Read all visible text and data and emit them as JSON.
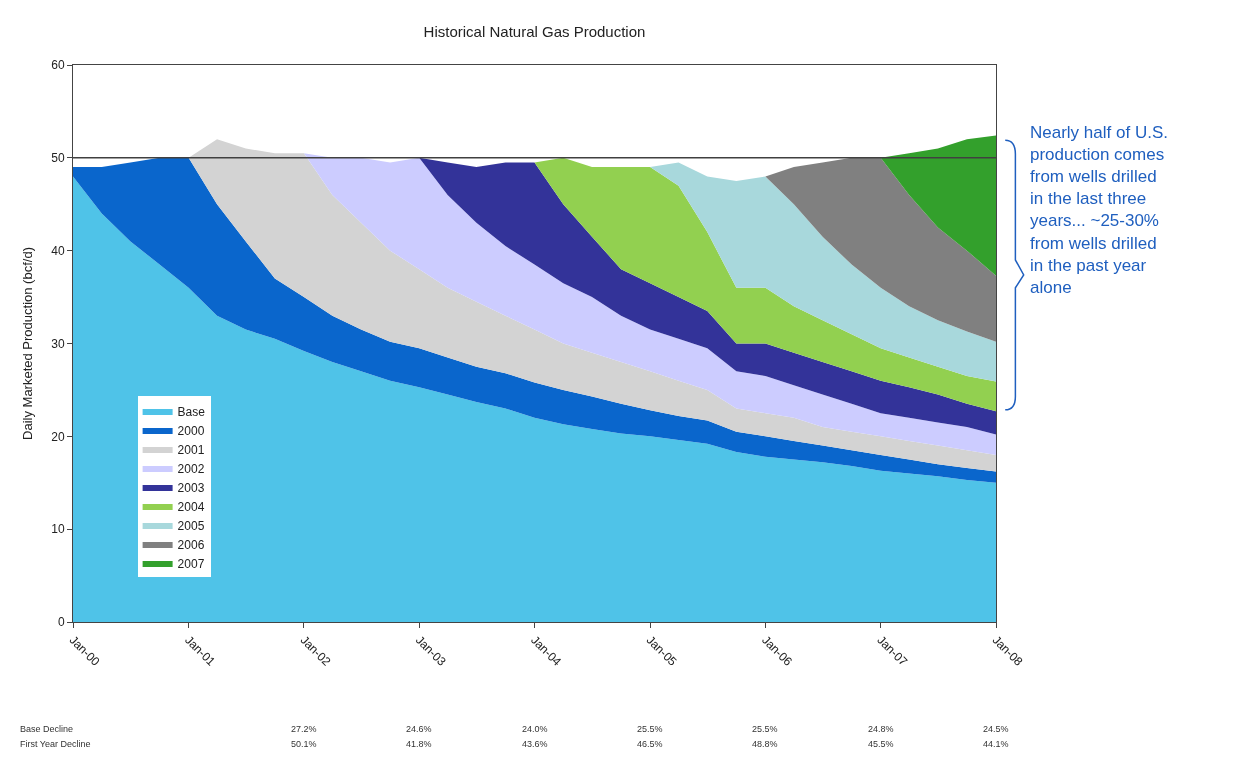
{
  "chart_data": {
    "type": "area",
    "stacked": true,
    "title": "Historical Natural Gas Production",
    "ylabel": "Daily Marketed Production (bcf/d)",
    "x": [
      "2000-01",
      "2000-04",
      "2000-07",
      "2000-10",
      "2001-01",
      "2001-04",
      "2001-07",
      "2001-10",
      "2002-01",
      "2002-04",
      "2002-07",
      "2002-10",
      "2003-01",
      "2003-04",
      "2003-07",
      "2003-10",
      "2004-01",
      "2004-04",
      "2004-07",
      "2004-10",
      "2005-01",
      "2005-04",
      "2005-07",
      "2005-10",
      "2006-01",
      "2006-04",
      "2006-07",
      "2006-10",
      "2007-01",
      "2007-04",
      "2007-07",
      "2007-10",
      "2008-01"
    ],
    "xlim": [
      "2000-01",
      "2008-01"
    ],
    "xticks": [
      {
        "value": "2000-01",
        "label": "Jan-00"
      },
      {
        "value": "2001-01",
        "label": "Jan-01"
      },
      {
        "value": "2002-01",
        "label": "Jan-02"
      },
      {
        "value": "2003-01",
        "label": "Jan-03"
      },
      {
        "value": "2004-01",
        "label": "Jan-04"
      },
      {
        "value": "2005-01",
        "label": "Jan-05"
      },
      {
        "value": "2006-01",
        "label": "Jan-06"
      },
      {
        "value": "2007-01",
        "label": "Jan-07"
      },
      {
        "value": "2008-01",
        "label": "Jan-08"
      }
    ],
    "ylim": [
      0,
      60
    ],
    "yticks": [
      0,
      10,
      20,
      30,
      40,
      50,
      60
    ],
    "legend": "left",
    "ref_lines": [
      {
        "axis": "y",
        "value": 50,
        "color": "#404040"
      }
    ],
    "series": [
      {
        "name": "Base",
        "color": "#4fc3e8",
        "values": [
          48,
          44,
          41,
          38.5,
          36,
          33,
          31.5,
          30.5,
          29.2,
          28,
          27,
          26,
          25.3,
          24.5,
          23.7,
          23,
          22,
          21.3,
          20.8,
          20.3,
          20,
          19.6,
          19.2,
          18.3,
          17.8,
          17.5,
          17.2,
          16.8,
          16.3,
          16,
          15.7,
          15.3,
          15
        ]
      },
      {
        "name": "2000",
        "color": "#0a66cc",
        "values": [
          1.0,
          5.0,
          8.5,
          11.5,
          14.0,
          12.0,
          9.5,
          6.5,
          5.8,
          5.0,
          4.5,
          4.2,
          4.2,
          4.0,
          3.8,
          3.8,
          3.8,
          3.7,
          3.5,
          3.2,
          2.8,
          2.6,
          2.5,
          2.2,
          2.2,
          2.0,
          1.8,
          1.7,
          1.7,
          1.5,
          1.3,
          1.3,
          1.2
        ]
      },
      {
        "name": "2001",
        "color": "#d3d3d3",
        "values": [
          0,
          0,
          0,
          0,
          0,
          7,
          10,
          13.5,
          15.5,
          13,
          11.5,
          9.8,
          8.5,
          7.5,
          7,
          6.2,
          5.7,
          5,
          4.7,
          4.5,
          4.2,
          3.8,
          3.3,
          2.5,
          2.5,
          2.5,
          2,
          2,
          2,
          2,
          2,
          1.9,
          1.8
        ]
      },
      {
        "name": "2002",
        "color": "#ccccff",
        "values": [
          0,
          0,
          0,
          0,
          0,
          0,
          0,
          0,
          0,
          4,
          7,
          9.5,
          12,
          10,
          8.5,
          7.5,
          7,
          6.5,
          6,
          5,
          4.5,
          4.5,
          4.5,
          4,
          4,
          3.5,
          3.5,
          3,
          2.5,
          2.5,
          2.5,
          2.5,
          2.2
        ]
      },
      {
        "name": "2003",
        "color": "#333399",
        "values": [
          0,
          0,
          0,
          0,
          0,
          0,
          0,
          0,
          0,
          0,
          0,
          0,
          0,
          3.5,
          6,
          9,
          11,
          8.5,
          6.5,
          5,
          5,
          4.5,
          4,
          3,
          3.5,
          3.5,
          3.5,
          3.5,
          3.5,
          3.3,
          3,
          2.5,
          2.5
        ]
      },
      {
        "name": "2004",
        "color": "#92d050",
        "values": [
          0,
          0,
          0,
          0,
          0,
          0,
          0,
          0,
          0,
          0,
          0,
          0,
          0,
          0,
          0,
          0,
          0,
          5,
          7.5,
          11,
          12.5,
          12,
          8.5,
          6,
          6,
          5,
          4.5,
          4,
          3.5,
          3.2,
          3,
          3,
          3.2
        ]
      },
      {
        "name": "2005",
        "color": "#a8d8dc",
        "values": [
          0,
          0,
          0,
          0,
          0,
          0,
          0,
          0,
          0,
          0,
          0,
          0,
          0,
          0,
          0,
          0,
          0,
          0,
          0,
          0,
          0,
          2.5,
          6,
          11.5,
          12,
          11,
          9,
          7.5,
          6.5,
          5.5,
          5,
          4.8,
          4.3
        ]
      },
      {
        "name": "2006",
        "color": "#808080",
        "values": [
          0,
          0,
          0,
          0,
          0,
          0,
          0,
          0,
          0,
          0,
          0,
          0,
          0,
          0,
          0,
          0,
          0,
          0,
          0,
          0,
          0,
          0,
          0,
          0,
          0,
          4,
          8,
          11.5,
          14,
          12,
          10,
          8.7,
          7.1
        ]
      },
      {
        "name": "2007",
        "color": "#33a02c",
        "values": [
          0,
          0,
          0,
          0,
          0,
          0,
          0,
          0,
          0,
          0,
          0,
          0,
          0,
          0,
          0,
          0,
          0,
          0,
          0,
          0,
          0,
          0,
          0,
          0,
          0,
          0,
          0,
          0,
          0,
          4.5,
          8.5,
          12,
          15.1
        ]
      }
    ],
    "annotations": [
      "Nearly half of U.S.\nproduction comes\nfrom wells drilled\nin the last three\nyears... ~25-30%\nfrom wells drilled\nin the past year\nalone",
      "Base Decline",
      "27.2%",
      "24.6%",
      "24.0%",
      "25.5%",
      "25.5%",
      "24.8%",
      "24.5%",
      "First Year Decline",
      "50.1%",
      "41.8%",
      "43.6%",
      "46.5%",
      "48.8%",
      "45.5%",
      "44.1%"
    ]
  }
}
